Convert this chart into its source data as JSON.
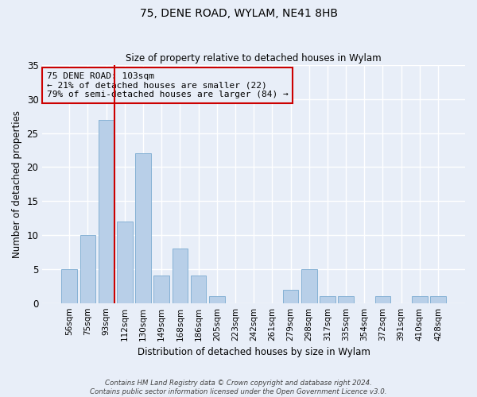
{
  "title1": "75, DENE ROAD, WYLAM, NE41 8HB",
  "title2": "Size of property relative to detached houses in Wylam",
  "xlabel": "Distribution of detached houses by size in Wylam",
  "ylabel": "Number of detached properties",
  "categories": [
    "56sqm",
    "75sqm",
    "93sqm",
    "112sqm",
    "130sqm",
    "149sqm",
    "168sqm",
    "186sqm",
    "205sqm",
    "223sqm",
    "242sqm",
    "261sqm",
    "279sqm",
    "298sqm",
    "317sqm",
    "335sqm",
    "354sqm",
    "372sqm",
    "391sqm",
    "410sqm",
    "428sqm"
  ],
  "values": [
    5,
    10,
    27,
    12,
    22,
    4,
    8,
    4,
    1,
    0,
    0,
    0,
    2,
    5,
    1,
    1,
    0,
    1,
    0,
    1,
    1
  ],
  "bar_color": "#b8cfe8",
  "bar_edge_color": "#7aaad0",
  "vline_color": "#cc0000",
  "annotation_text": "75 DENE ROAD: 103sqm\n← 21% of detached houses are smaller (22)\n79% of semi-detached houses are larger (84) →",
  "annotation_box_color": "#cc0000",
  "ylim": [
    0,
    35
  ],
  "yticks": [
    0,
    5,
    10,
    15,
    20,
    25,
    30,
    35
  ],
  "background_color": "#e8eef8",
  "grid_color": "#ffffff",
  "footer": "Contains HM Land Registry data © Crown copyright and database right 2024.\nContains public sector information licensed under the Open Government Licence v3.0."
}
